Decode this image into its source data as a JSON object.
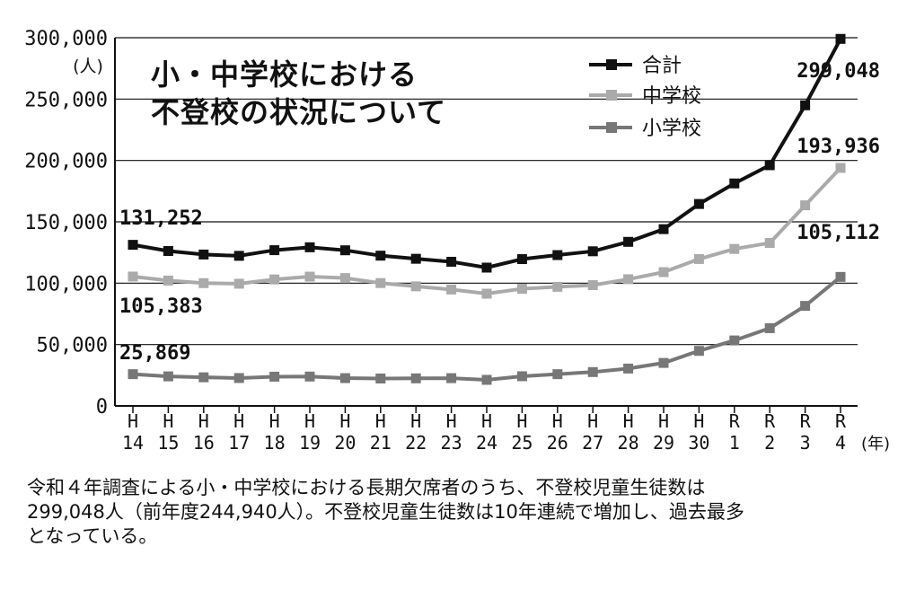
{
  "chart_data": {
    "type": "line",
    "title": "小・中学校における不登校の状況について",
    "title_lines": [
      "小・中学校における",
      "不登校の状況について"
    ],
    "ylabel": "(人)",
    "xlabel": "(年)",
    "ylim": [
      0,
      300000
    ],
    "yticks": [
      "0",
      "50,000",
      "100,000",
      "150,000",
      "200,000",
      "250,000",
      "300,000"
    ],
    "yticks_values": [
      0,
      50000,
      100000,
      150000,
      200000,
      250000,
      300000
    ],
    "grid": true,
    "legend_position": "top-right",
    "categories": [
      [
        "H",
        "14"
      ],
      [
        "H",
        "15"
      ],
      [
        "H",
        "16"
      ],
      [
        "H",
        "17"
      ],
      [
        "H",
        "18"
      ],
      [
        "H",
        "19"
      ],
      [
        "H",
        "20"
      ],
      [
        "H",
        "21"
      ],
      [
        "H",
        "22"
      ],
      [
        "H",
        "23"
      ],
      [
        "H",
        "24"
      ],
      [
        "H",
        "25"
      ],
      [
        "H",
        "26"
      ],
      [
        "H",
        "27"
      ],
      [
        "H",
        "28"
      ],
      [
        "H",
        "29"
      ],
      [
        "H",
        "30"
      ],
      [
        "R",
        "1"
      ],
      [
        "R",
        "2"
      ],
      [
        "R",
        "3"
      ],
      [
        "R",
        "4"
      ]
    ],
    "series": [
      {
        "name": "合計",
        "color": "#111111",
        "values": [
          131252,
          126226,
          123358,
          122287,
          126894,
          129255,
          126805,
          122432,
          119891,
          117458,
          112689,
          119617,
          122897,
          125991,
          133683,
          144031,
          164528,
          181272,
          196127,
          244940,
          299048
        ]
      },
      {
        "name": "中学校",
        "color": "#aaaaaa",
        "values": [
          105383,
          102149,
          100040,
          99578,
          103069,
          105328,
          104153,
          100105,
          97428,
          94836,
          91446,
          95442,
          97033,
          98408,
          103235,
          108999,
          119687,
          127922,
          132777,
          163442,
          193936
        ]
      },
      {
        "name": "小学校",
        "color": "#777777",
        "values": [
          25869,
          24077,
          23318,
          22709,
          23825,
          23927,
          22652,
          22327,
          22463,
          22622,
          21243,
          24175,
          25864,
          27583,
          30448,
          35032,
          44841,
          53350,
          63350,
          81498,
          105112
        ]
      }
    ],
    "annotations": [
      "131,252",
      "105,383",
      "25,869",
      "299,048",
      "193,936",
      "105,112"
    ]
  },
  "caption": {
    "lines": [
      "令和４年調査による小・中学校における長期欠席者のうち、不登校児童生徒数は",
      "299,048人（前年度244,940人）。不登校児童生徒数は10年連続で増加し、過去最多",
      "となっている。"
    ]
  }
}
